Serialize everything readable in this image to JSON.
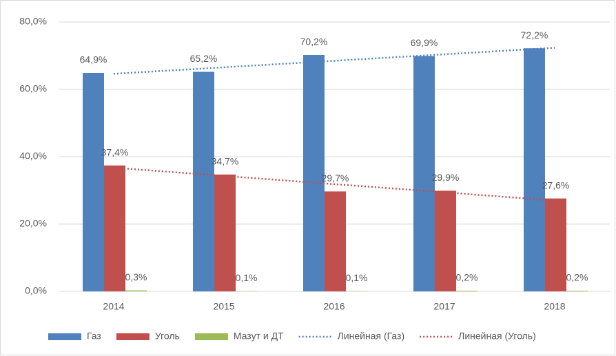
{
  "chart_data": {
    "type": "bar",
    "categories": [
      "2014",
      "2015",
      "2016",
      "2017",
      "2018"
    ],
    "series": [
      {
        "name": "Газ",
        "color": "#4f81bd",
        "values": [
          64.9,
          65.2,
          70.2,
          69.9,
          72.2
        ],
        "value_labels": [
          "64,9%",
          "65,2%",
          "70,2%",
          "69,9%",
          "72,2%"
        ]
      },
      {
        "name": "Уголь",
        "color": "#c0504d",
        "values": [
          37.4,
          34.7,
          29.7,
          29.9,
          27.6
        ],
        "value_labels": [
          "37,4%",
          "34,7%",
          "29,7%",
          "29,9%",
          "27,6%"
        ]
      },
      {
        "name": "Мазут и ДТ",
        "color": "#9bbb59",
        "values": [
          0.3,
          0.1,
          0.1,
          0.2,
          0.2
        ],
        "value_labels": [
          "0,3%",
          "0,1%",
          "0,1%",
          "0,2%",
          "0,2%"
        ]
      }
    ],
    "trendlines": [
      {
        "name": "Линейная (Газ)",
        "color": "#4f81bd",
        "values": [
          64.62,
          66.55,
          68.48,
          70.41,
          72.34
        ]
      },
      {
        "name": "Линейная (Уголь)",
        "color": "#c0504d",
        "values": [
          36.74,
          34.3,
          31.86,
          29.42,
          26.98
        ]
      }
    ],
    "ylim": [
      0,
      80
    ],
    "yticks": [
      {
        "value": 0,
        "label": "0,0%"
      },
      {
        "value": 20,
        "label": "20,0%"
      },
      {
        "value": 40,
        "label": "40,0%"
      },
      {
        "value": 60,
        "label": "60,0%"
      },
      {
        "value": 80,
        "label": "80,0%"
      }
    ],
    "grid": true,
    "legend": "bottom"
  }
}
